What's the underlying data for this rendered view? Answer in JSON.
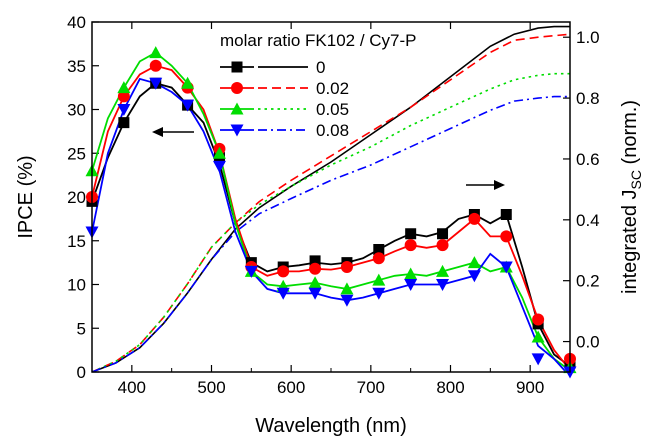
{
  "chart_data": {
    "type": "line",
    "title": "",
    "xlabel": "Wavelength (nm)",
    "ylabel_left": "IPCE (%)",
    "ylabel_right_prefix": "integrated J",
    "ylabel_right_sub": "SC",
    "ylabel_right_suffix": " (norm.)",
    "xlim": [
      350,
      950
    ],
    "ylim_left": [
      0,
      40
    ],
    "ylim_right": [
      -0.1,
      1.05
    ],
    "x_ticks": [
      400,
      500,
      600,
      700,
      800,
      900
    ],
    "y_ticks_left": [
      0,
      5,
      10,
      15,
      20,
      25,
      30,
      35,
      40
    ],
    "y_ticks_right": [
      "0.0",
      "0.2",
      "0.4",
      "0.6",
      "0.8",
      "1.0"
    ],
    "legend": {
      "title": "molar ratio FK102 / Cy7-P",
      "placement": "top-center",
      "entries": [
        "0",
        "0.02",
        "0.05",
        "0.08"
      ]
    },
    "annotations": [
      "arrow-left: IPCE curves",
      "arrow-right: integrated Jsc curves"
    ],
    "series_styles": [
      {
        "color": "#000000",
        "marker": "square",
        "dash": "solid"
      },
      {
        "color": "#ff0000",
        "marker": "circle",
        "dash": "dashed"
      },
      {
        "color": "#00dd00",
        "marker": "triangle-up",
        "dash": "dotted"
      },
      {
        "color": "#0000ff",
        "marker": "triangle-down",
        "dash": "dashdot"
      }
    ],
    "ipce_series": [
      {
        "name": "0",
        "x": [
          350,
          370,
          390,
          410,
          430,
          450,
          470,
          490,
          510,
          530,
          550,
          570,
          590,
          610,
          630,
          650,
          670,
          690,
          710,
          730,
          750,
          770,
          790,
          810,
          830,
          850,
          870,
          890,
          910,
          930,
          945
        ],
        "y": [
          19.5,
          24.5,
          28.5,
          31.5,
          33.0,
          32.5,
          30.5,
          28.5,
          23.8,
          17.0,
          12.5,
          11.5,
          12.0,
          12.2,
          12.5,
          12.3,
          12.5,
          13.0,
          14.0,
          15.0,
          15.8,
          15.5,
          16.0,
          17.5,
          18.0,
          17.0,
          18.0,
          12.0,
          5.5,
          2.0,
          1.0
        ],
        "marker_x": [
          350,
          390,
          430,
          470,
          510,
          550,
          590,
          630,
          670,
          710,
          750,
          790,
          830,
          870,
          910,
          950
        ],
        "marker_y": [
          19.5,
          28.5,
          33.0,
          30.5,
          24.5,
          12.5,
          12.0,
          12.7,
          12.5,
          14.0,
          15.8,
          15.8,
          18.0,
          18.0,
          5.5,
          1.0
        ]
      },
      {
        "name": "0.02",
        "x": [
          350,
          370,
          390,
          410,
          430,
          450,
          470,
          490,
          510,
          530,
          550,
          570,
          590,
          610,
          630,
          650,
          670,
          690,
          710,
          730,
          750,
          770,
          790,
          810,
          830,
          850,
          870,
          890,
          910,
          930,
          945
        ],
        "y": [
          20.0,
          27.5,
          31.5,
          34.0,
          35.0,
          34.5,
          32.5,
          30.0,
          25.0,
          17.5,
          12.0,
          11.0,
          11.5,
          11.5,
          11.8,
          11.7,
          12.0,
          12.5,
          13.0,
          13.8,
          14.5,
          14.2,
          14.5,
          16.0,
          17.5,
          15.5,
          15.5,
          11.0,
          6.0,
          2.5,
          0.8
        ],
        "marker_x": [
          350,
          390,
          430,
          470,
          510,
          550,
          590,
          630,
          670,
          710,
          750,
          790,
          830,
          870,
          910,
          950
        ],
        "marker_y": [
          20.0,
          31.5,
          35.0,
          32.5,
          25.5,
          12.0,
          11.5,
          11.8,
          12.0,
          13.0,
          14.5,
          14.5,
          17.5,
          15.5,
          6.0,
          1.5
        ]
      },
      {
        "name": "0.05",
        "x": [
          350,
          370,
          390,
          410,
          430,
          450,
          470,
          490,
          510,
          530,
          550,
          570,
          590,
          610,
          630,
          650,
          670,
          690,
          710,
          730,
          750,
          770,
          790,
          810,
          830,
          850,
          870,
          890,
          910,
          930,
          945
        ],
        "y": [
          23.0,
          29.0,
          32.5,
          35.5,
          36.5,
          35.0,
          33.0,
          29.5,
          25.0,
          17.0,
          11.5,
          10.0,
          9.8,
          10.0,
          10.2,
          9.8,
          9.5,
          10.0,
          10.5,
          11.0,
          11.2,
          11.0,
          11.5,
          12.0,
          12.5,
          11.5,
          12.0,
          8.5,
          4.0,
          1.5,
          0.5
        ],
        "marker_x": [
          350,
          390,
          430,
          470,
          510,
          550,
          590,
          630,
          670,
          710,
          750,
          790,
          830,
          870,
          910,
          950
        ],
        "marker_y": [
          23.0,
          32.5,
          36.5,
          33.0,
          25.0,
          11.5,
          9.8,
          10.2,
          9.5,
          10.5,
          11.2,
          11.5,
          12.5,
          12.0,
          4.0,
          0.5
        ]
      },
      {
        "name": "0.08",
        "x": [
          350,
          370,
          390,
          410,
          430,
          450,
          470,
          490,
          510,
          530,
          550,
          570,
          590,
          610,
          630,
          650,
          670,
          690,
          710,
          730,
          750,
          770,
          790,
          810,
          830,
          850,
          870,
          890,
          910,
          930,
          945
        ],
        "y": [
          16.0,
          25.0,
          30.0,
          33.5,
          33.0,
          32.0,
          30.5,
          27.5,
          23.0,
          16.0,
          11.5,
          9.5,
          9.0,
          9.0,
          9.0,
          8.5,
          8.2,
          8.5,
          9.0,
          9.5,
          10.0,
          10.0,
          10.0,
          10.5,
          11.0,
          13.5,
          12.0,
          7.5,
          3.0,
          1.5,
          0.0
        ],
        "marker_x": [
          350,
          390,
          430,
          470,
          510,
          550,
          590,
          630,
          670,
          710,
          750,
          790,
          830,
          870,
          910,
          950
        ],
        "marker_y": [
          16.0,
          30.0,
          33.0,
          30.5,
          23.5,
          11.5,
          9.0,
          9.0,
          8.2,
          9.0,
          10.0,
          10.0,
          11.0,
          12.0,
          1.5,
          0.0
        ]
      }
    ],
    "jsc_series": [
      {
        "name": "0",
        "x": [
          350,
          380,
          410,
          440,
          470,
          500,
          530,
          560,
          600,
          650,
          700,
          750,
          800,
          850,
          880,
          910,
          930,
          950
        ],
        "y": [
          -0.1,
          -0.07,
          -0.02,
          0.06,
          0.16,
          0.27,
          0.37,
          0.44,
          0.51,
          0.59,
          0.68,
          0.77,
          0.87,
          0.97,
          1.01,
          1.03,
          1.035,
          1.035
        ]
      },
      {
        "name": "0.02",
        "x": [
          350,
          380,
          410,
          440,
          470,
          500,
          530,
          560,
          600,
          650,
          700,
          750,
          800,
          850,
          880,
          910,
          930,
          950
        ],
        "y": [
          -0.1,
          -0.065,
          -0.01,
          0.08,
          0.19,
          0.31,
          0.39,
          0.46,
          0.53,
          0.61,
          0.69,
          0.77,
          0.86,
          0.95,
          0.99,
          1.0,
          1.005,
          1.01
        ]
      },
      {
        "name": "0.05",
        "x": [
          350,
          380,
          410,
          440,
          470,
          500,
          530,
          560,
          600,
          650,
          700,
          750,
          800,
          850,
          880,
          910,
          930,
          950
        ],
        "y": [
          -0.1,
          -0.065,
          -0.01,
          0.08,
          0.19,
          0.31,
          0.39,
          0.45,
          0.51,
          0.58,
          0.64,
          0.71,
          0.77,
          0.83,
          0.86,
          0.875,
          0.88,
          0.88
        ]
      },
      {
        "name": "0.08",
        "x": [
          350,
          380,
          410,
          440,
          470,
          500,
          530,
          560,
          600,
          650,
          700,
          750,
          800,
          850,
          880,
          910,
          930,
          950
        ],
        "y": [
          -0.1,
          -0.07,
          -0.02,
          0.06,
          0.16,
          0.27,
          0.36,
          0.42,
          0.47,
          0.53,
          0.58,
          0.64,
          0.7,
          0.76,
          0.79,
          0.8,
          0.805,
          0.805
        ]
      }
    ]
  }
}
